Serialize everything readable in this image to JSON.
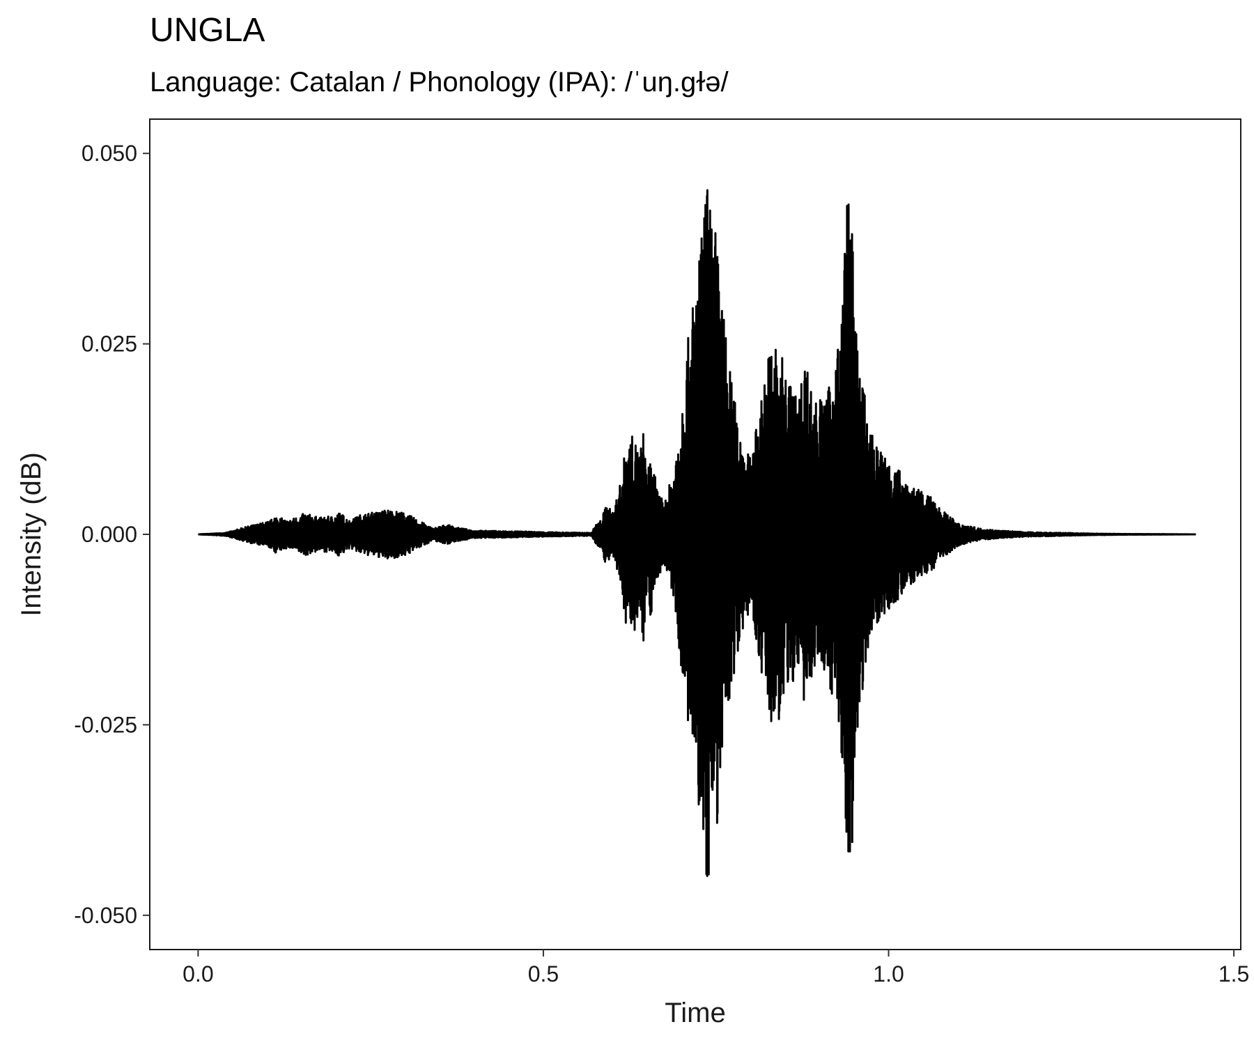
{
  "chart_data": {
    "type": "line",
    "title": "UNGLA",
    "subtitle": "Language: Catalan / Phonology (IPA): /ˈuŋ.gɫə/",
    "xlabel": "Time",
    "ylabel": "Intensity (dB)",
    "xlim": [
      -0.07,
      1.51
    ],
    "ylim": [
      -0.0545,
      0.0545
    ],
    "x_ticks": [
      0.0,
      0.5,
      1.0,
      1.5
    ],
    "x_tick_labels": [
      "0.0",
      "0.5",
      "1.0",
      "1.5"
    ],
    "y_ticks": [
      0.05,
      0.025,
      0.0,
      -0.025,
      -0.05
    ],
    "y_tick_labels": [
      "0.050",
      "0.025",
      "0.000",
      "-0.025",
      "-0.050"
    ],
    "grid": false,
    "legend": "none",
    "series": [
      {
        "color": "#000000",
        "duration": 1.445,
        "envelope_time": [
          0,
          0.04,
          0.07,
          0.105,
          0.11,
          0.13,
          0.155,
          0.175,
          0.195,
          0.205,
          0.22,
          0.235,
          0.26,
          0.275,
          0.3,
          0.34,
          0.36,
          0.375,
          0.4,
          0.46,
          0.5,
          0.57,
          0.575,
          0.585,
          0.59,
          0.6,
          0.61,
          0.62,
          0.63,
          0.64,
          0.645,
          0.65,
          0.655,
          0.665,
          0.675,
          0.69,
          0.7,
          0.715,
          0.73,
          0.735,
          0.74,
          0.75,
          0.76,
          0.77,
          0.78,
          0.79,
          0.8,
          0.81,
          0.83,
          0.84,
          0.85,
          0.86,
          0.87,
          0.88,
          0.89,
          0.9,
          0.91,
          0.92,
          0.93,
          0.94,
          0.945,
          0.95,
          0.96,
          0.97,
          0.98,
          1.0,
          1.02,
          1.04,
          1.06,
          1.08,
          1.1,
          1.13,
          1.16,
          1.2,
          1.25,
          1.3,
          1.35,
          1.445
        ],
        "envelope_amplitude": [
          0,
          0.0002,
          0.001,
          0.0018,
          0.0025,
          0.0018,
          0.0028,
          0.0022,
          0.0024,
          0.0029,
          0.0018,
          0.0026,
          0.003,
          0.0033,
          0.0028,
          0.0008,
          0.0013,
          0.0009,
          0.0005,
          0.0004,
          0.0003,
          0.0002,
          0.0012,
          0.002,
          0.004,
          0.003,
          0.006,
          0.012,
          0.013,
          0.011,
          0.014,
          0.007,
          0.011,
          0.006,
          0.004,
          0.009,
          0.018,
          0.03,
          0.04,
          0.047,
          0.045,
          0.04,
          0.03,
          0.022,
          0.016,
          0.012,
          0.01,
          0.015,
          0.026,
          0.025,
          0.022,
          0.02,
          0.018,
          0.024,
          0.018,
          0.018,
          0.018,
          0.022,
          0.027,
          0.044,
          0.05,
          0.03,
          0.022,
          0.015,
          0.012,
          0.01,
          0.008,
          0.006,
          0.005,
          0.003,
          0.0015,
          0.0008,
          0.0005,
          0.0003,
          0.0002,
          0.0001,
          5e-05,
          0
        ]
      }
    ]
  }
}
